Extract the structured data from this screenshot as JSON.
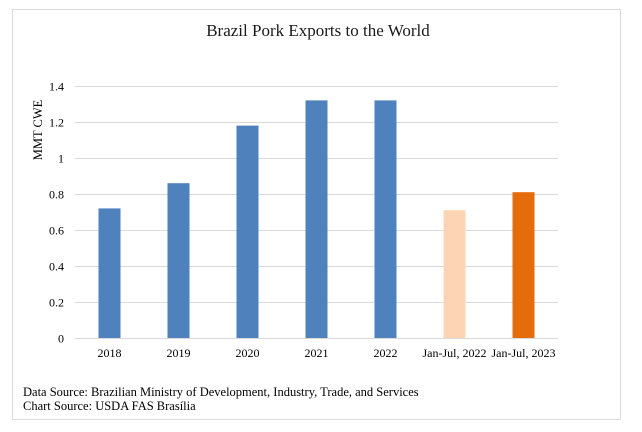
{
  "chart_data": {
    "type": "bar",
    "title": "Brazil Pork Exports to the World",
    "xlabel": "",
    "ylabel": "MMT CWE",
    "ylim": [
      0,
      1.4
    ],
    "yticks": [
      0,
      0.2,
      0.4,
      0.6,
      0.8,
      1,
      1.2,
      1.4
    ],
    "ytick_labels": [
      "0",
      "0.2",
      "0.4",
      "0.6",
      "0.8",
      "1",
      "1.2",
      "1.4"
    ],
    "grid": true,
    "legend": "none",
    "categories": [
      "2018",
      "2019",
      "2020",
      "2021",
      "2022",
      "Jan-Jul, 2022",
      "Jan-Jul, 2023"
    ],
    "values": [
      0.72,
      0.86,
      1.18,
      1.32,
      1.32,
      0.71,
      0.81
    ],
    "colors": [
      "#4f81bd",
      "#4f81bd",
      "#4f81bd",
      "#4f81bd",
      "#4f81bd",
      "#fcd5b5",
      "#e46c0a"
    ]
  },
  "footer": {
    "data_source": "Data Source: Brazilian Ministry of Development, Industry, Trade, and Services",
    "chart_source": "Chart Source: USDA FAS Brasília"
  },
  "style": {
    "grid_color": "#d9d9d9",
    "frame_color": "#d9d9d9"
  }
}
